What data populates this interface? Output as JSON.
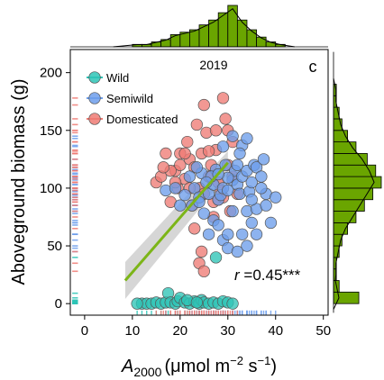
{
  "chart_data": {
    "type": "scatter",
    "year_label": "2019",
    "panel_label": "c",
    "xlabel_symbol": "A",
    "xlabel_subscript": "2000",
    "xlabel_unit_open": "(μmol m",
    "xlabel_exp1": "−2",
    "xlabel_mid": " s",
    "xlabel_exp2": "−1",
    "xlabel_close": ")",
    "ylabel": "Aboveground biomass (g)",
    "xlim": [
      -3,
      51
    ],
    "ylim": [
      -10,
      220
    ],
    "xticks": [
      0,
      10,
      20,
      30,
      40,
      50
    ],
    "yticks": [
      0,
      50,
      100,
      150,
      200
    ],
    "grid": false,
    "legend_position": "top-left",
    "annotation": {
      "r_symbol": "r",
      "text": " =0.45***",
      "position": "bottom-right"
    },
    "colors": {
      "Wild": "#2ec4b6",
      "Semiwild": "#6d9eeb",
      "Domesticated": "#ee7b74",
      "fit_line": "#7cb518",
      "confidence_band": "#c8c8c8",
      "histogram": "#6aa500"
    },
    "fit": {
      "x": [
        8.5,
        30
      ],
      "y": [
        20,
        122
      ]
    },
    "band": {
      "x": [
        8.5,
        30
      ],
      "lower": [
        4,
        112
      ],
      "upper": [
        36,
        132
      ]
    },
    "series": [
      {
        "name": "Wild",
        "points": [
          [
            12,
            0
          ],
          [
            13,
            0
          ],
          [
            14,
            0
          ],
          [
            15,
            1
          ],
          [
            16,
            0
          ],
          [
            17,
            1
          ],
          [
            17.5,
            9
          ],
          [
            18,
            1
          ],
          [
            19,
            0
          ],
          [
            19.5,
            2
          ],
          [
            20,
            5
          ],
          [
            21,
            1
          ],
          [
            22,
            0
          ],
          [
            23,
            2
          ],
          [
            24,
            0
          ],
          [
            24.5,
            3
          ],
          [
            25,
            1
          ],
          [
            26,
            0
          ],
          [
            27,
            1
          ],
          [
            28,
            0
          ],
          [
            29,
            2
          ],
          [
            30,
            1
          ],
          [
            31,
            0
          ],
          [
            27.5,
            40
          ],
          [
            11,
            0
          ],
          [
            21.5,
            3
          ],
          [
            23.5,
            1
          ]
        ]
      },
      {
        "name": "Semiwild",
        "points": [
          [
            17,
            98
          ],
          [
            19,
            100
          ],
          [
            20,
            85
          ],
          [
            21,
            94
          ],
          [
            22,
            110
          ],
          [
            22.5,
            85
          ],
          [
            23,
            100
          ],
          [
            24,
            92
          ],
          [
            24.5,
            113
          ],
          [
            25,
            78
          ],
          [
            26,
            95
          ],
          [
            27,
            103
          ],
          [
            27.5,
            116
          ],
          [
            28,
            90
          ],
          [
            28.5,
            94
          ],
          [
            29,
            100
          ],
          [
            29.5,
            120
          ],
          [
            30,
            98
          ],
          [
            31,
            107
          ],
          [
            31.5,
            115
          ],
          [
            32,
            103
          ],
          [
            32.5,
            95
          ],
          [
            33,
            110
          ],
          [
            34,
            115
          ],
          [
            34.5,
            97
          ],
          [
            35,
            105
          ],
          [
            35.5,
            120
          ],
          [
            36,
            118
          ],
          [
            37,
            110
          ],
          [
            38,
            95
          ],
          [
            39,
            70
          ],
          [
            40,
            92
          ],
          [
            26,
            60
          ],
          [
            27,
            72
          ],
          [
            28,
            68
          ],
          [
            29,
            55
          ],
          [
            30,
            60
          ],
          [
            30,
            48
          ],
          [
            32,
            45
          ],
          [
            33,
            60
          ],
          [
            34,
            80
          ],
          [
            35,
            70
          ],
          [
            36,
            82
          ],
          [
            37,
            100
          ],
          [
            33,
            137
          ],
          [
            34,
            143
          ],
          [
            31,
            145
          ],
          [
            29,
            136
          ],
          [
            32,
            120
          ],
          [
            30,
            109
          ],
          [
            26.5,
            110
          ],
          [
            24,
            88
          ],
          [
            35,
            90
          ],
          [
            37.5,
            125
          ],
          [
            36,
            60
          ],
          [
            38,
            85
          ],
          [
            31,
            80
          ],
          [
            28,
            112
          ],
          [
            25.5,
            105
          ],
          [
            23.5,
            118
          ],
          [
            34,
            50
          ],
          [
            32.5,
            130
          ]
        ]
      },
      {
        "name": "Domesticated",
        "points": [
          [
            15,
            105
          ],
          [
            16,
            110
          ],
          [
            17,
            130
          ],
          [
            18,
            88
          ],
          [
            19,
            115
          ],
          [
            19.5,
            100
          ],
          [
            20,
            120
          ],
          [
            21,
            108
          ],
          [
            21.5,
            140
          ],
          [
            22,
            125
          ],
          [
            22.5,
            85
          ],
          [
            23,
            118
          ],
          [
            24,
            100
          ],
          [
            24.5,
            130
          ],
          [
            25,
            95
          ],
          [
            25.5,
            148
          ],
          [
            26,
            110
          ],
          [
            26.5,
            120
          ],
          [
            27,
            88
          ],
          [
            27.5,
            133
          ],
          [
            28,
            105
          ],
          [
            28.5,
            98
          ],
          [
            29,
            178
          ],
          [
            29.5,
            160
          ],
          [
            30,
            150
          ],
          [
            30.5,
            80
          ],
          [
            31,
            110
          ],
          [
            32,
            95
          ],
          [
            23,
            65
          ],
          [
            24,
            35
          ],
          [
            25,
            28
          ],
          [
            24.5,
            45
          ],
          [
            27,
            75
          ],
          [
            20,
            130
          ],
          [
            18,
            115
          ],
          [
            21,
            130
          ],
          [
            23.5,
            155
          ],
          [
            26,
            132
          ],
          [
            25,
            172
          ],
          [
            28,
            90
          ],
          [
            31,
            140
          ],
          [
            22,
            100
          ],
          [
            30,
            120
          ],
          [
            27.5,
            150
          ],
          [
            19,
            105
          ],
          [
            16.5,
            118
          ],
          [
            29,
            92
          ]
        ]
      }
    ],
    "top_histogram": {
      "bins": [
        10,
        12,
        14,
        16,
        18,
        20,
        22,
        24,
        26,
        28,
        30,
        32,
        34,
        36,
        38,
        40
      ],
      "counts": [
        1,
        1,
        2,
        3,
        5,
        6,
        7,
        9,
        11,
        14,
        17,
        11,
        7,
        4,
        2,
        1
      ]
    },
    "right_histogram": {
      "bins": [
        0,
        10,
        20,
        30,
        40,
        50,
        60,
        70,
        80,
        90,
        100,
        110,
        120,
        130,
        140,
        150,
        160,
        170,
        180
      ],
      "counts": [
        9,
        2,
        1,
        1,
        2,
        3,
        5,
        8,
        11,
        14,
        17,
        15,
        12,
        8,
        5,
        3,
        2,
        1,
        1
      ]
    }
  }
}
